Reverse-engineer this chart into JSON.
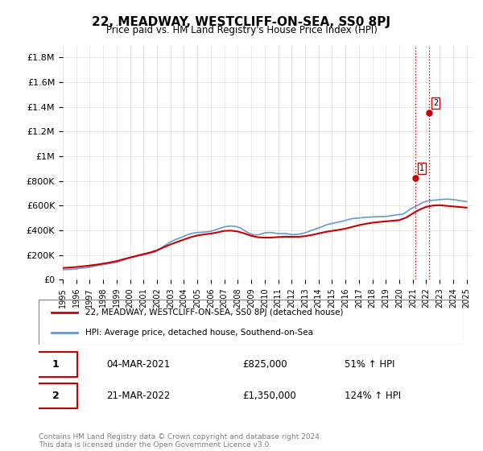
{
  "title": "22, MEADWAY, WESTCLIFF-ON-SEA, SS0 8PJ",
  "subtitle": "Price paid vs. HM Land Registry's House Price Index (HPI)",
  "ylabel_ticks": [
    "£0",
    "£200K",
    "£400K",
    "£600K",
    "£800K",
    "£1M",
    "£1.2M",
    "£1.4M",
    "£1.6M",
    "£1.8M"
  ],
  "ytick_values": [
    0,
    200000,
    400000,
    600000,
    800000,
    1000000,
    1200000,
    1400000,
    1600000,
    1800000
  ],
  "ylim": [
    0,
    1900000
  ],
  "xlim_start": 1995.0,
  "xlim_end": 2025.5,
  "hpi_color": "#6699cc",
  "price_color": "#cc0000",
  "vline_color": "#cc0000",
  "vline_style": ":",
  "annotation_box_color": "#cc0000",
  "legend_label_price": "22, MEADWAY, WESTCLIFF-ON-SEA, SS0 8PJ (detached house)",
  "legend_label_hpi": "HPI: Average price, detached house, Southend-on-Sea",
  "transaction1_label": "1",
  "transaction1_date": "04-MAR-2021",
  "transaction1_price": "£825,000",
  "transaction1_hpi": "51% ↑ HPI",
  "transaction1_year": 2021.17,
  "transaction1_value": 825000,
  "transaction2_label": "2",
  "transaction2_date": "21-MAR-2022",
  "transaction2_price": "£1,350,000",
  "transaction2_hpi": "124% ↑ HPI",
  "transaction2_year": 2022.22,
  "transaction2_value": 1350000,
  "footer": "Contains HM Land Registry data © Crown copyright and database right 2024.\nThis data is licensed under the Open Government Licence v3.0.",
  "background_color": "#ffffff",
  "grid_color": "#dddddd",
  "hpi_years": [
    1995.0,
    1995.25,
    1995.5,
    1995.75,
    1996.0,
    1996.25,
    1996.5,
    1996.75,
    1997.0,
    1997.25,
    1997.5,
    1997.75,
    1998.0,
    1998.25,
    1998.5,
    1998.75,
    1999.0,
    1999.25,
    1999.5,
    1999.75,
    2000.0,
    2000.25,
    2000.5,
    2000.75,
    2001.0,
    2001.25,
    2001.5,
    2001.75,
    2002.0,
    2002.25,
    2002.5,
    2002.75,
    2003.0,
    2003.25,
    2003.5,
    2003.75,
    2004.0,
    2004.25,
    2004.5,
    2004.75,
    2005.0,
    2005.25,
    2005.5,
    2005.75,
    2006.0,
    2006.25,
    2006.5,
    2006.75,
    2007.0,
    2007.25,
    2007.5,
    2007.75,
    2008.0,
    2008.25,
    2008.5,
    2008.75,
    2009.0,
    2009.25,
    2009.5,
    2009.75,
    2010.0,
    2010.25,
    2010.5,
    2010.75,
    2011.0,
    2011.25,
    2011.5,
    2011.75,
    2012.0,
    2012.25,
    2012.5,
    2012.75,
    2013.0,
    2013.25,
    2013.5,
    2013.75,
    2014.0,
    2014.25,
    2014.5,
    2014.75,
    2015.0,
    2015.25,
    2015.5,
    2015.75,
    2016.0,
    2016.25,
    2016.5,
    2016.75,
    2017.0,
    2017.25,
    2017.5,
    2017.75,
    2018.0,
    2018.25,
    2018.5,
    2018.75,
    2019.0,
    2019.25,
    2019.5,
    2019.75,
    2020.0,
    2020.25,
    2020.5,
    2020.75,
    2021.0,
    2021.25,
    2021.5,
    2021.75,
    2022.0,
    2022.25,
    2022.5,
    2022.75,
    2023.0,
    2023.25,
    2023.5,
    2023.75,
    2024.0,
    2024.25,
    2024.5,
    2024.75,
    2025.0
  ],
  "hpi_values": [
    81000,
    82000,
    83000,
    84000,
    87000,
    91000,
    94000,
    97000,
    101000,
    107000,
    113000,
    118000,
    122000,
    126000,
    131000,
    135000,
    140000,
    149000,
    158000,
    168000,
    177000,
    184000,
    191000,
    196000,
    200000,
    207000,
    214000,
    221000,
    232000,
    252000,
    271000,
    288000,
    305000,
    318000,
    330000,
    340000,
    352000,
    363000,
    372000,
    378000,
    381000,
    383000,
    385000,
    388000,
    392000,
    400000,
    409000,
    418000,
    427000,
    432000,
    435000,
    432000,
    427000,
    415000,
    398000,
    381000,
    368000,
    362000,
    363000,
    370000,
    379000,
    382000,
    381000,
    377000,
    372000,
    374000,
    373000,
    370000,
    365000,
    365000,
    368000,
    373000,
    379000,
    389000,
    400000,
    409000,
    418000,
    429000,
    440000,
    449000,
    455000,
    461000,
    467000,
    473000,
    480000,
    488000,
    494000,
    497000,
    499000,
    502000,
    505000,
    506000,
    508000,
    509000,
    510000,
    510000,
    512000,
    515000,
    519000,
    524000,
    527000,
    530000,
    545000,
    567000,
    582000,
    595000,
    610000,
    625000,
    635000,
    640000,
    643000,
    645000,
    648000,
    651000,
    652000,
    651000,
    648000,
    645000,
    640000,
    636000,
    632000
  ],
  "price_years": [
    1995.0,
    1995.5,
    1996.0,
    1996.5,
    1997.0,
    1997.5,
    1998.0,
    1998.5,
    1999.0,
    1999.5,
    2000.0,
    2000.5,
    2001.0,
    2001.5,
    2002.0,
    2002.5,
    2003.0,
    2003.5,
    2004.0,
    2004.5,
    2005.0,
    2005.5,
    2006.0,
    2006.5,
    2007.0,
    2007.5,
    2008.0,
    2008.5,
    2009.0,
    2009.5,
    2010.0,
    2010.5,
    2011.0,
    2011.5,
    2012.0,
    2012.5,
    2013.0,
    2013.5,
    2014.0,
    2014.5,
    2015.0,
    2015.5,
    2016.0,
    2016.5,
    2017.0,
    2017.5,
    2018.0,
    2018.5,
    2019.0,
    2019.5,
    2020.0,
    2020.5,
    2021.0,
    2021.5,
    2022.0,
    2022.5,
    2023.0,
    2023.5,
    2024.0,
    2024.5,
    2025.0
  ],
  "price_values": [
    95000,
    98000,
    102000,
    108000,
    114000,
    121000,
    130000,
    139000,
    150000,
    165000,
    179000,
    193000,
    207000,
    220000,
    238000,
    262000,
    285000,
    305000,
    325000,
    344000,
    358000,
    366000,
    373000,
    383000,
    395000,
    397000,
    390000,
    374000,
    355000,
    343000,
    340000,
    341000,
    345000,
    348000,
    347000,
    347000,
    352000,
    362000,
    374000,
    386000,
    395000,
    403000,
    413000,
    427000,
    441000,
    452000,
    461000,
    467000,
    472000,
    477000,
    482000,
    502000,
    536000,
    567000,
    590000,
    600000,
    603000,
    598000,
    593000,
    588000,
    583000
  ]
}
